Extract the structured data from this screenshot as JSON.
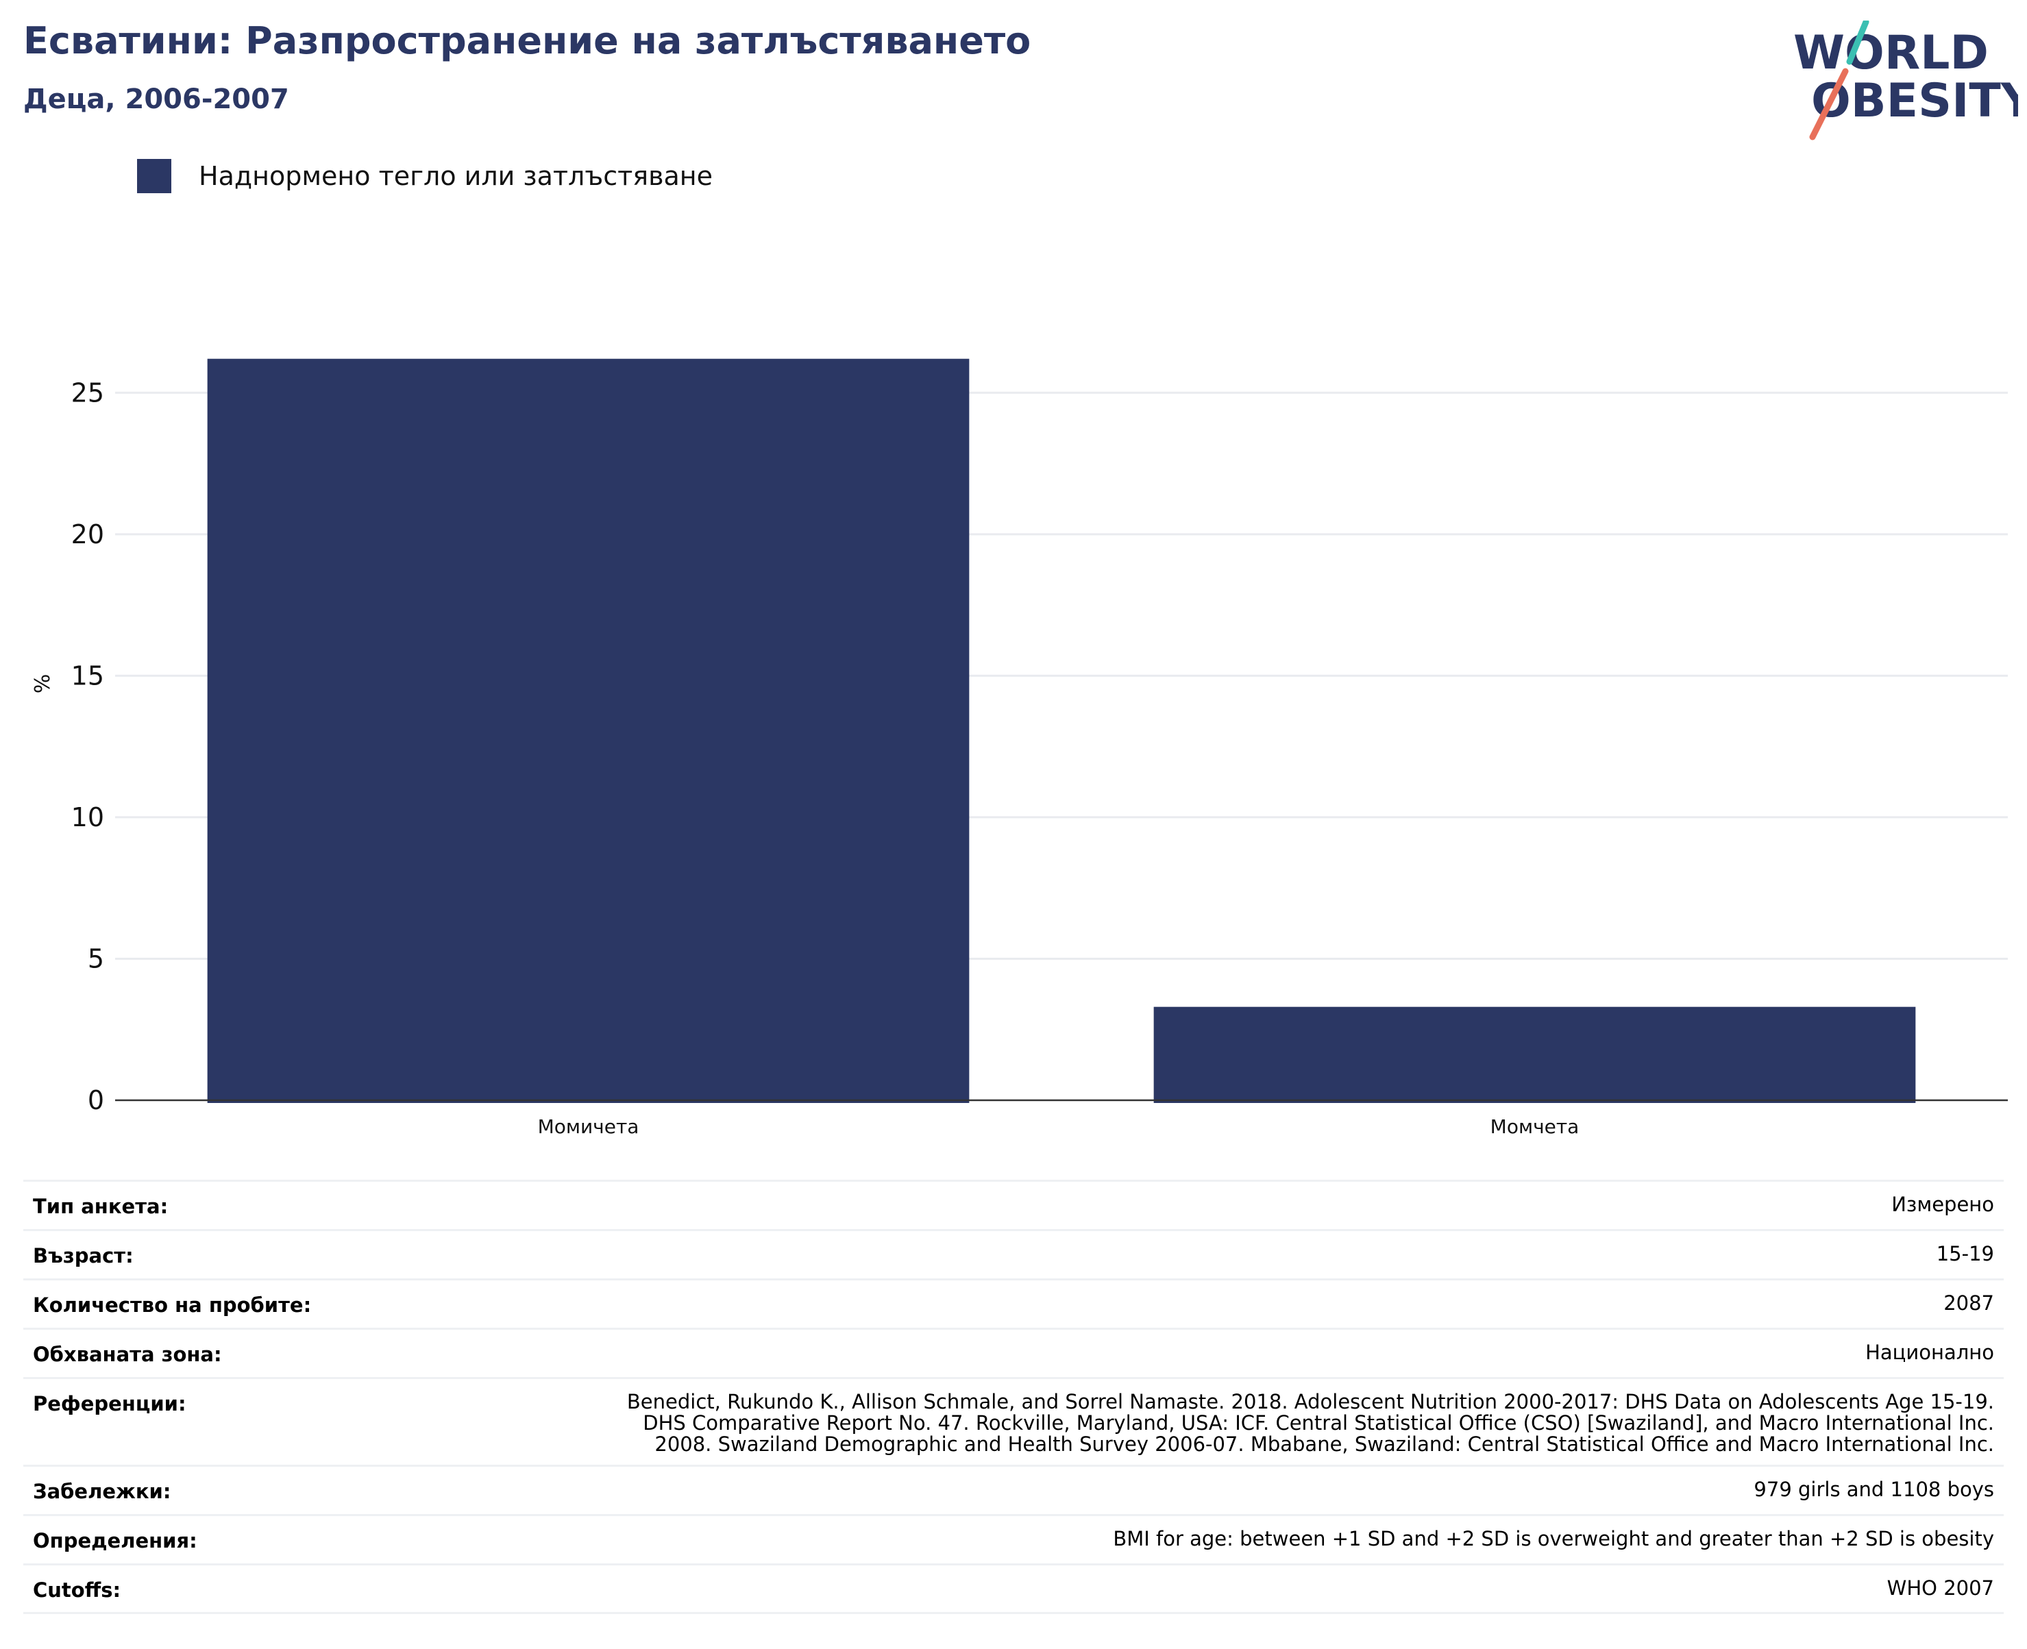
{
  "header": {
    "title": "Есватини: Разпространение на затлъстяването",
    "subtitle": "Деца, 2006-2007"
  },
  "logo": {
    "line1": "WORLD",
    "line2": "OBESITY",
    "colors": {
      "text": "#2b3764",
      "slash_top": "#3bbfb2",
      "slash_bottom": "#e8705a"
    }
  },
  "legend": {
    "label": "Наднормено тегло или затлъстяване",
    "color": "#2b3764"
  },
  "chart_data": {
    "type": "bar",
    "categories": [
      "Момичета",
      "Момчета"
    ],
    "series": [
      {
        "name": "Наднормено тегло или затлъстяване",
        "values": [
          26.2,
          3.3
        ],
        "color": "#2b3764"
      }
    ],
    "ylabel": "%",
    "yticks": [
      0,
      5,
      10,
      15,
      20,
      25
    ],
    "ylim": [
      0,
      27.5
    ],
    "grid": true
  },
  "info": [
    {
      "key": "Тип анкета:",
      "lines": [
        "Измерено"
      ]
    },
    {
      "key": "Възраст:",
      "lines": [
        "15-19"
      ]
    },
    {
      "key": "Количество на пробите:",
      "lines": [
        "2087"
      ]
    },
    {
      "key": "Обхваната зона:",
      "lines": [
        "Национално"
      ]
    },
    {
      "key": "Референции:",
      "lines": [
        "Benedict, Rukundo K., Allison Schmale, and Sorrel Namaste. 2018. Adolescent Nutrition 2000-2017: DHS Data on Adolescents Age 15-19.",
        "DHS Comparative Report No. 47. Rockville, Maryland, USA: ICF. Central Statistical Office (CSO) [Swaziland], and Macro International Inc.",
        "2008. Swaziland Demographic and Health Survey 2006-07. Mbabane, Swaziland: Central Statistical Office and Macro International Inc."
      ]
    },
    {
      "key": "Забележки:",
      "lines": [
        "979 girls and 1108 boys"
      ]
    },
    {
      "key": "Определения:",
      "lines": [
        "BMI for age: between +1 SD and +2 SD is overweight and greater than +2 SD is obesity"
      ]
    },
    {
      "key": "Cutoffs:",
      "lines": [
        "WHO 2007"
      ]
    }
  ]
}
